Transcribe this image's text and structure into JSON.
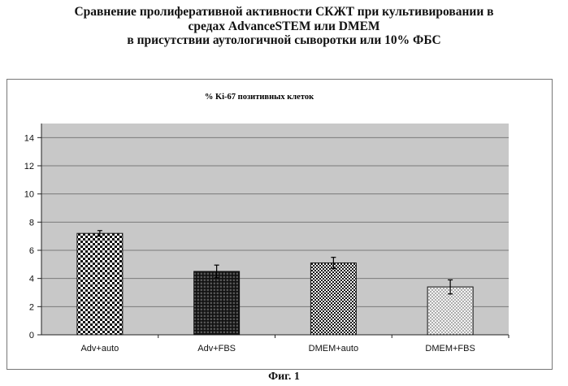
{
  "header": {
    "lines": [
      "Сравнение пролиферативной активности СКЖТ при культивировании в",
      "средах AdvanceSTEM или DMEM",
      "в присутствии аутологичной сыворотки или 10% ФБС"
    ]
  },
  "figure_caption": "Фиг. 1",
  "chart_data": {
    "type": "bar",
    "title": "% Ki-67 позитивных клеток",
    "categories": [
      "Adv+auto",
      "Adv+FBS",
      "DMEM+auto",
      "DMEM+FBS"
    ],
    "values": [
      7.2,
      4.5,
      5.1,
      3.4
    ],
    "error": [
      0.2,
      0.45,
      0.4,
      0.5
    ],
    "patterns": [
      "checker-coarse",
      "grid-dark",
      "checker-fine",
      "dots"
    ],
    "ylim": [
      0,
      15
    ],
    "yticks": [
      "0",
      "2",
      "4",
      "6",
      "8",
      "10",
      "12",
      "14"
    ],
    "grid": true,
    "colors": {
      "plot_bg": "#c8c8c8",
      "bar_fill": "#ffffff",
      "bar_ink": "#111111",
      "grid": "#7a7a7a"
    }
  }
}
